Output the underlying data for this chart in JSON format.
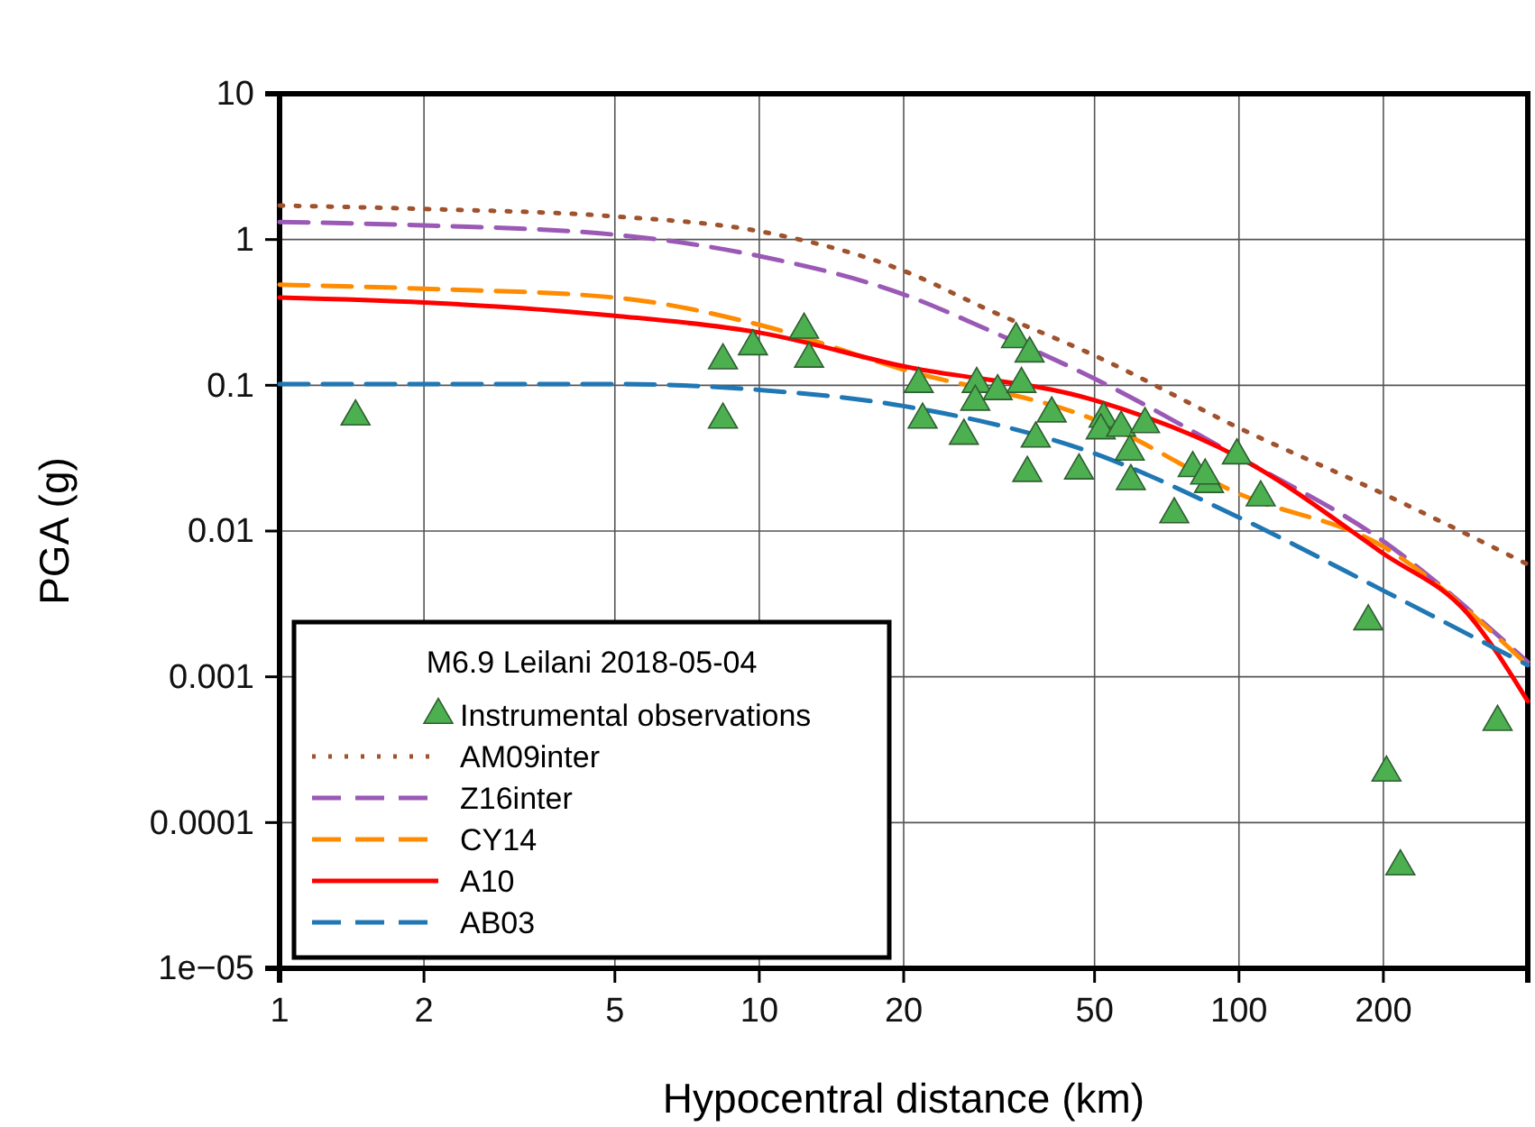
{
  "chart_data": {
    "type": "line",
    "xlabel": "Hypocentral distance (km)",
    "ylabel": "PGA (g)",
    "log": "xy",
    "grid": true,
    "legend": "bottom left",
    "legend_title": "M6.9 Leilani 2018-05-04",
    "xlim": [
      1,
      400
    ],
    "ylim": [
      1e-05,
      10
    ],
    "xticks": [
      1,
      2,
      5,
      10,
      20,
      50,
      100,
      200
    ],
    "yticks": [
      10,
      1,
      0.1,
      0.01,
      0.001,
      0.0001,
      {
        "value": 1e-05,
        "label": "1e−05"
      }
    ],
    "series": [
      {
        "name": "Instrumental observations",
        "type": "scatter",
        "marker": "triangle",
        "color": "#4caf50",
        "x": [
          1.44,
          8.4,
          8.4,
          9.7,
          12.4,
          12.7,
          34.3,
          36.6,
          21.5,
          21.9,
          26.7,
          28.4,
          28.2,
          31.4,
          35.2,
          37.7,
          36.2,
          40.7,
          46.4,
          52.2,
          51.5,
          56.8,
          63.7,
          59.2,
          59.5,
          80.1,
          86.6,
          85,
          73.3,
          99,
          111,
          186,
          346,
          203,
          217
        ],
        "values": [
          0.061,
          0.148,
          0.058,
          0.185,
          0.24,
          0.152,
          0.207,
          0.165,
          0.102,
          0.058,
          0.045,
          0.102,
          0.077,
          0.091,
          0.102,
          0.043,
          0.025,
          0.064,
          0.026,
          0.059,
          0.049,
          0.051,
          0.054,
          0.035,
          0.022,
          0.027,
          0.021,
          0.024,
          0.013,
          0.033,
          0.017,
          0.0024,
          0.00049,
          0.00022,
          5e-05
        ]
      },
      {
        "name": "AM09inter",
        "line_style": "dotted",
        "color": "#a0522d",
        "x": [
          1,
          2,
          5,
          10,
          20,
          30,
          50,
          100,
          200,
          400
        ],
        "values": [
          1.71,
          1.62,
          1.44,
          1.14,
          0.61,
          0.33,
          0.16,
          0.051,
          0.018,
          0.0059
        ]
      },
      {
        "name": "Z16inter",
        "line_style": "dashed",
        "color": "#9b59b6",
        "x": [
          1,
          2,
          5,
          10,
          20,
          30,
          50,
          100,
          200,
          400
        ],
        "values": [
          1.32,
          1.25,
          1.08,
          0.77,
          0.42,
          0.24,
          0.111,
          0.032,
          0.0085,
          0.00126
        ]
      },
      {
        "name": "CY14",
        "line_style": "dashed",
        "color": "#ff8c00",
        "x": [
          1,
          2,
          5,
          10,
          20,
          50,
          100,
          200,
          400
        ],
        "values": [
          0.49,
          0.46,
          0.4,
          0.26,
          0.128,
          0.058,
          0.018,
          0.0078,
          0.0012
        ]
      },
      {
        "name": "A10",
        "line_style": "solid",
        "color": "#ff0000",
        "x": [
          1,
          2,
          5,
          10,
          20,
          50,
          100,
          200,
          300,
          400
        ],
        "values": [
          0.4,
          0.37,
          0.3,
          0.23,
          0.135,
          0.079,
          0.032,
          0.007,
          0.0027,
          0.00068
        ]
      },
      {
        "name": "AB03",
        "line_style": "dashed",
        "color": "#1f77b4",
        "x": [
          1,
          5,
          10,
          20,
          50,
          100,
          200,
          400
        ],
        "values": [
          0.102,
          0.102,
          0.093,
          0.072,
          0.034,
          0.0124,
          0.0039,
          0.0012
        ]
      }
    ]
  }
}
